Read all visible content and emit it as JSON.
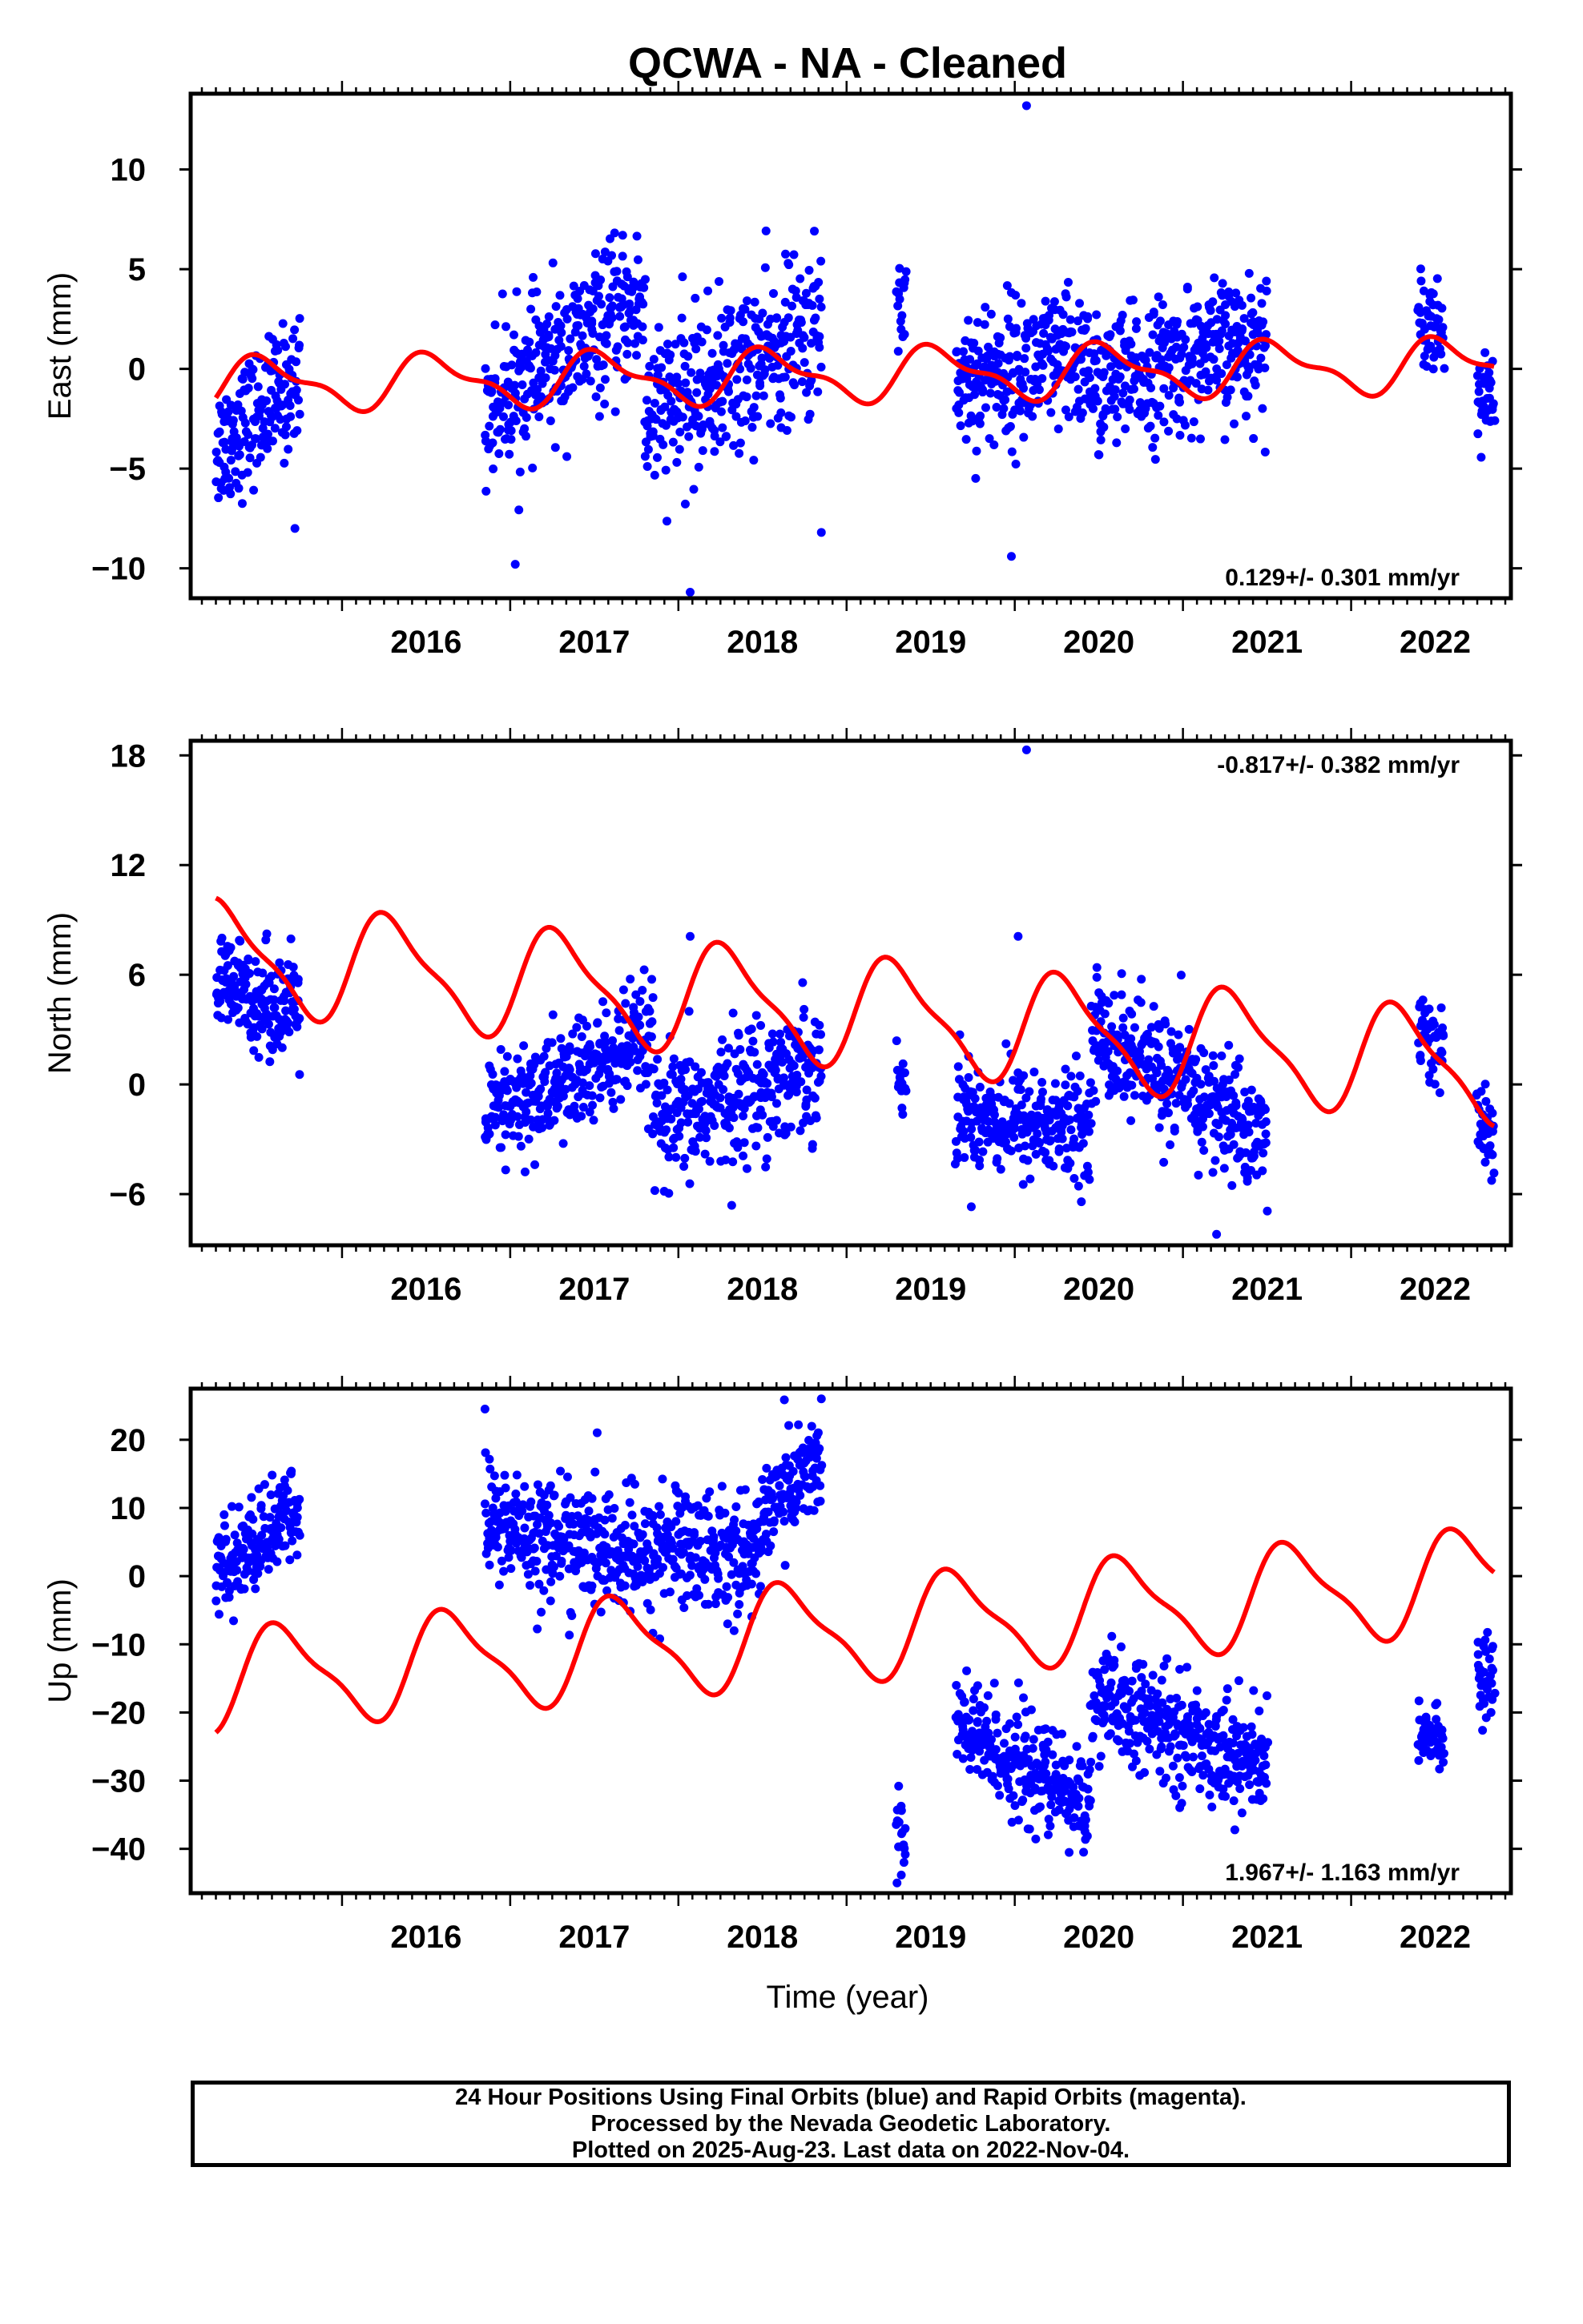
{
  "title": "QCWA  - NA - Cleaned",
  "xlabel": "Time (year)",
  "colors": {
    "data": "#0000ff",
    "model": "#ff0000",
    "axes": "#000000"
  },
  "caption": {
    "line1": "24 Hour Positions Using Final Orbits (blue) and Rapid Orbits (magenta).",
    "line2": "Processed by the Nevada Geodetic Laboratory.",
    "line3": "Plotted on 2025-Aug-23. Last data on 2022-Nov-04."
  },
  "chart_data": [
    {
      "type": "scatter",
      "ylabel": "East (mm)",
      "rate": "0.129+/- 0.301 mm/yr",
      "rate_position": "bottom-right",
      "xlim": [
        2015.1,
        2022.95
      ],
      "ylim": [
        -11.5,
        13.8
      ],
      "xticks": [
        "2016",
        "2017",
        "2018",
        "2019",
        "2020",
        "2021",
        "2022"
      ],
      "yticks": [
        10,
        5,
        0,
        -5,
        -10
      ],
      "ytick_labels": [
        "10",
        "5",
        "0",
        "−5",
        "−10"
      ],
      "data_segments": [
        {
          "start": 2015.25,
          "end": 2015.75,
          "mean": [
            -4.0,
            -0.5
          ],
          "spread": 1.6
        },
        {
          "start": 2016.85,
          "end": 2017.8,
          "mean": [
            -2.0,
            3.5
          ],
          "spread": 1.8
        },
        {
          "start": 2017.8,
          "end": 2018.85,
          "mean": [
            -2.5,
            2.0
          ],
          "spread": 2.0
        },
        {
          "start": 2019.3,
          "end": 2019.35,
          "mean": [
            3.5,
            3.5
          ],
          "spread": 1.5
        },
        {
          "start": 2019.65,
          "end": 2020.45,
          "mean": [
            -0.5,
            0.5
          ],
          "spread": 1.8
        },
        {
          "start": 2020.45,
          "end": 2021.5,
          "mean": [
            -1.0,
            1.5
          ],
          "spread": 1.7
        },
        {
          "start": 2022.4,
          "end": 2022.55,
          "mean": [
            3.0,
            2.0
          ],
          "spread": 1.2
        },
        {
          "start": 2022.75,
          "end": 2022.85,
          "mean": [
            -1.5,
            -1.5
          ],
          "spread": 1.0
        }
      ],
      "outliers": [
        [
          2020.07,
          13.2
        ],
        [
          2018.07,
          -11.2
        ],
        [
          2017.03,
          -9.8
        ],
        [
          2019.98,
          -9.4
        ],
        [
          2015.72,
          -8.0
        ],
        [
          2018.85,
          -8.2
        ]
      ],
      "model": {
        "offset": -0.3,
        "trend": 0.129,
        "annual": 1.2,
        "semiannual": 0.5,
        "phase": 0.3
      }
    },
    {
      "type": "scatter",
      "ylabel": "North (mm)",
      "rate": "-0.817+/- 0.382 mm/yr",
      "rate_position": "top-right",
      "xlim": [
        2015.1,
        2022.95
      ],
      "ylim": [
        -8.8,
        18.8
      ],
      "xticks": [
        "2016",
        "2017",
        "2018",
        "2019",
        "2020",
        "2021",
        "2022"
      ],
      "yticks": [
        18,
        12,
        6,
        0,
        -6
      ],
      "ytick_labels": [
        "18",
        "12",
        "6",
        "0",
        "−6"
      ],
      "data_segments": [
        {
          "start": 2015.25,
          "end": 2015.75,
          "mean": [
            5.5,
            4.0
          ],
          "spread": 1.4
        },
        {
          "start": 2016.85,
          "end": 2017.85,
          "mean": [
            -2.0,
            2.5
          ],
          "spread": 1.6
        },
        {
          "start": 2017.85,
          "end": 2018.85,
          "mean": [
            -2.5,
            1.5
          ],
          "spread": 1.8
        },
        {
          "start": 2019.3,
          "end": 2019.35,
          "mean": [
            0.0,
            0.0
          ],
          "spread": 1.0
        },
        {
          "start": 2019.65,
          "end": 2020.45,
          "mean": [
            -1.5,
            -2.5
          ],
          "spread": 1.5
        },
        {
          "start": 2020.45,
          "end": 2021.5,
          "mean": [
            3.0,
            -3.0
          ],
          "spread": 1.7
        },
        {
          "start": 2022.4,
          "end": 2022.55,
          "mean": [
            3.0,
            2.0
          ],
          "spread": 1.2
        },
        {
          "start": 2022.75,
          "end": 2022.85,
          "mean": [
            -2.0,
            -3.0
          ],
          "spread": 1.0
        }
      ],
      "outliers": [
        [
          2020.07,
          18.3
        ],
        [
          2018.07,
          8.1
        ],
        [
          2020.02,
          8.1
        ],
        [
          2021.2,
          -8.2
        ]
      ],
      "model": {
        "offset": 4.0,
        "trend": -0.817,
        "annual": 2.8,
        "semiannual": 0.8,
        "phase": 0.05
      }
    },
    {
      "type": "scatter",
      "ylabel": "Up (mm)",
      "rate": "1.967+/- 1.163 mm/yr",
      "rate_position": "bottom-right",
      "xlim": [
        2015.1,
        2022.95
      ],
      "ylim": [
        -46.5,
        27.5
      ],
      "xticks": [
        "2016",
        "2017",
        "2018",
        "2019",
        "2020",
        "2021",
        "2022"
      ],
      "yticks": [
        20,
        10,
        0,
        -10,
        -20,
        -30,
        -40
      ],
      "ytick_labels": [
        "20",
        "10",
        "0",
        "−10",
        "−20",
        "−30",
        "−40"
      ],
      "data_segments": [
        {
          "start": 2015.25,
          "end": 2015.75,
          "mean": [
            0.0,
            10.0
          ],
          "spread": 3.5
        },
        {
          "start": 2016.85,
          "end": 2017.85,
          "mean": [
            8.0,
            2.0
          ],
          "spread": 4.5
        },
        {
          "start": 2017.85,
          "end": 2018.5,
          "mean": [
            5.0,
            3.0
          ],
          "spread": 4.5
        },
        {
          "start": 2018.5,
          "end": 2018.85,
          "mean": [
            10.0,
            17.0
          ],
          "spread": 4.0
        },
        {
          "start": 2019.3,
          "end": 2019.35,
          "mean": [
            -36.0,
            -40.0
          ],
          "spread": 4.0
        },
        {
          "start": 2019.65,
          "end": 2020.45,
          "mean": [
            -22.0,
            -34.0
          ],
          "spread": 4.0
        },
        {
          "start": 2020.45,
          "end": 2021.5,
          "mean": [
            -18.0,
            -28.0
          ],
          "spread": 4.0
        },
        {
          "start": 2022.4,
          "end": 2022.55,
          "mean": [
            -22.0,
            -25.0
          ],
          "spread": 2.0
        },
        {
          "start": 2022.75,
          "end": 2022.85,
          "mean": [
            -15.0,
            -15.0
          ],
          "spread": 3.0
        }
      ],
      "outliers": [
        [
          2018.85,
          26.0
        ],
        [
          2016.85,
          24.5
        ],
        [
          2019.3,
          -45.0
        ]
      ],
      "model": {
        "offset": -8.0,
        "trend": 1.967,
        "annual": 7.0,
        "semiannual": 2.0,
        "phase": 0.4
      }
    }
  ]
}
